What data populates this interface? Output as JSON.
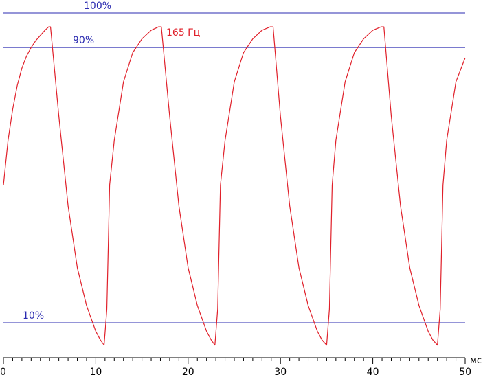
{
  "chart_data": {
    "type": "line",
    "title": "",
    "xlabel": "мс",
    "ylabel": "",
    "xlim": [
      0,
      50
    ],
    "ylim": [
      0,
      100
    ],
    "grid": false,
    "x_major_ticks": [
      0,
      10,
      20,
      30,
      40,
      50
    ],
    "x_minor_step": 1,
    "series_label": "165 Гц",
    "series_color": "#e0202a",
    "level_color": "#2b2bb0",
    "reference_lines": [
      {
        "label": "100%",
        "y": 100
      },
      {
        "label": "90%",
        "y": 90
      },
      {
        "label": "10%",
        "y": 10
      }
    ],
    "series": [
      {
        "color": "#e0202a",
        "x": [
          0,
          0.5,
          1,
          1.5,
          2,
          2.5,
          3,
          3.5,
          4,
          4.5,
          4.9,
          5.1,
          6,
          7,
          8,
          9,
          10,
          10.5,
          10.9,
          11.2,
          11.5,
          12,
          13,
          14,
          15,
          16,
          16.8,
          17.1,
          18,
          19,
          20,
          21,
          22,
          22.5,
          22.9,
          23.2,
          23.5,
          24,
          25,
          26,
          27,
          28,
          28.9,
          29.2,
          30,
          31,
          32,
          33,
          34,
          34.5,
          35,
          35.3,
          35.6,
          36,
          37,
          38,
          39,
          40,
          40.9,
          41.2,
          42,
          43,
          44,
          45,
          46,
          46.5,
          47,
          47.3,
          47.6,
          48,
          49,
          50
        ],
        "y": [
          50,
          63,
          72,
          79,
          84,
          87.5,
          90,
          92,
          93.5,
          95,
          96,
          96,
          70,
          44,
          26,
          15,
          7.5,
          5,
          3.5,
          14,
          50,
          63,
          80,
          88.5,
          92.5,
          95,
          96,
          96,
          70,
          44,
          26,
          15,
          7.5,
          5,
          3.5,
          14,
          50,
          63,
          80,
          88.5,
          92.5,
          95,
          96,
          96,
          70,
          44,
          26,
          15,
          7.5,
          5,
          3.5,
          14,
          50,
          63,
          80,
          88.5,
          92.5,
          95,
          96,
          96,
          70,
          44,
          26,
          15,
          7.5,
          5,
          3.5,
          14,
          50,
          63,
          80,
          87
        ]
      }
    ]
  }
}
